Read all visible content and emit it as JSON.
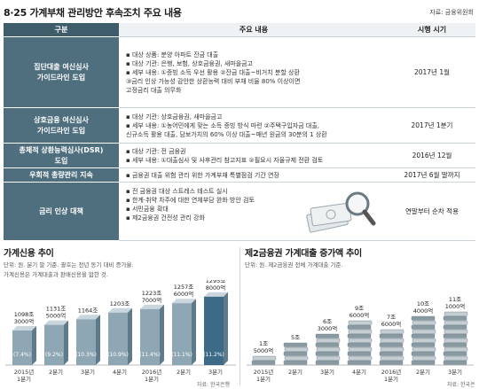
{
  "header": {
    "title": "8·25 가계부채 관리방안 후속조치 주요 내용",
    "source": "자료: 금융위원회"
  },
  "table": {
    "columns": [
      "구분",
      "주요 내용",
      "시행 시기"
    ],
    "rows": [
      {
        "category": [
          "집단대출 여신심사",
          "가이드라인 도입"
        ],
        "content": [
          "▪ 대상 상품: 분양 아파트 잔금 대출",
          "▪ 대상 기관: 은행, 보험, 상호금융권, 새마을금고",
          "▪ 세부 내용: ①증빙 소득 우선 활용 ②잔금 대출~비거치 분할 상환",
          "   ③금리 인상 가능성 감안한 상환능력 대비 부채 비율 80% 이상이면",
          "   고정금리 대출 의무화"
        ],
        "timing": "2017년 1월"
      },
      {
        "category": [
          "상호금융 여신심사",
          "가이드라인 도입"
        ],
        "content": [
          "▪ 대상 기관: 상호금융권, 새마을금고",
          "▪ 세부 내용: ①농어민에게 맞는 소득 증빙 방식 마련 ②주택구입자금 대출,",
          "   신규소득 활용 대출, 담보가치의 60% 이상 대출~매년 원금의 30분의 1 상환"
        ],
        "timing": "2017년 1분기"
      },
      {
        "category": [
          "총체적 상환능력심사(DSR)",
          "도입"
        ],
        "content": [
          "▪ 대상 기관: 전 금융권",
          "▪ 세부 내용: ①대출심사 및 사후관리 참고지표 ②필요시 자율규제 전환 검토"
        ],
        "timing": "2016년 12월"
      },
      {
        "category": [
          "우회적 총량관리 지속"
        ],
        "content": [
          "▪ 금융권 대출 위험 관리 위한 가계부채 특별점검 기간 연장"
        ],
        "timing": "2017년 6월 말까지"
      },
      {
        "category": [
          "금리 인상 대책"
        ],
        "content": [
          "▪ 전 금융권 대상 스트레스 테스트 실시",
          "▪ 한계·취약 차주에 대한 연체부담 완화 방안 검토",
          "▪ 서민금융 확대",
          "▪ 제2금융권 건전성 관리 강화"
        ],
        "timing": "연말부터 순차 적용"
      }
    ]
  },
  "left_panel": {
    "title": "가계신용 추이",
    "notes": [
      "단위: 원. 분기 말 기준. 괄호는 전년 동기 대비 증가율.",
      "가계신용은 가계대출과 판매신용을 합한 것."
    ],
    "source": "자료: 한국은행"
  },
  "right_panel": {
    "title": "제2금융권 가계대출 증가액 추이",
    "notes": [
      "단위: 원. 제2금융권 전체 가계대출 기준."
    ],
    "source": "자료: 한국은행"
  },
  "chart_data": [
    {
      "type": "bar",
      "title": "가계신용 추이",
      "categories": [
        [
          "2015년",
          "1분기"
        ],
        [
          "2분기"
        ],
        [
          "3분기"
        ],
        [
          "4분기"
        ],
        [
          "2016년",
          "1분기"
        ],
        [
          "2분기"
        ],
        [
          "3분기"
        ]
      ],
      "values": [
        1098.3,
        1131.5,
        1164,
        1203,
        1223.7,
        1257.6,
        1295.8
      ],
      "value_labels": [
        [
          "1098조",
          "3000억"
        ],
        [
          "1131조",
          "5000억"
        ],
        [
          "1164조"
        ],
        [
          "1203조"
        ],
        [
          "1223조",
          "7000억"
        ],
        [
          "1257조",
          "6000억"
        ],
        [
          "1295조",
          "8000억"
        ]
      ],
      "growth_labels": [
        "(7.4%)",
        "(9.2%)",
        "(10.3%)",
        "(10.9%)",
        "(11.4%)",
        "(11.1%)",
        "(11.2%)"
      ],
      "unit": "조 원",
      "colors": {
        "bar": "#8fa7b5",
        "bar_dark": "#5f7a8a",
        "highlight": "#3d6a86"
      }
    },
    {
      "type": "bar",
      "title": "제2금융권 가계대출 증가액 추이",
      "categories": [
        [
          "2015년",
          "1분기"
        ],
        [
          "2분기"
        ],
        [
          "3분기"
        ],
        [
          "4분기"
        ],
        [
          "2016년",
          "1분기"
        ],
        [
          "2분기"
        ],
        [
          "3분기"
        ]
      ],
      "values": [
        1.5,
        5,
        6.3,
        9.6,
        7.6,
        10.4,
        11.1
      ],
      "value_labels": [
        [
          "1조",
          "5000억"
        ],
        [
          "5조"
        ],
        [
          "6조",
          "3000억"
        ],
        [
          "9조",
          "6000억"
        ],
        [
          "7조",
          "6000억"
        ],
        [
          "10조",
          "4000억"
        ],
        [
          "11조",
          "1000억"
        ]
      ],
      "unit": "조 원",
      "colors": {
        "stack": "#8a9aa3",
        "stack_light": "#c4ced3"
      }
    }
  ]
}
